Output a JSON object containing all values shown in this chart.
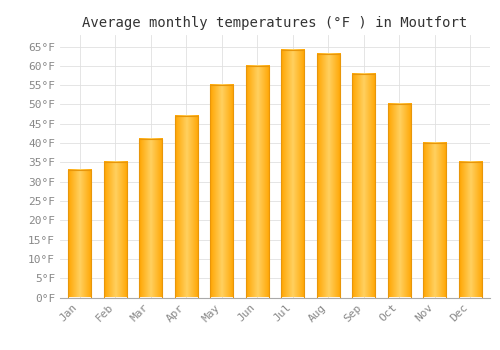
{
  "title": "Average monthly temperatures (°F ) in Moutfort",
  "months": [
    "Jan",
    "Feb",
    "Mar",
    "Apr",
    "May",
    "Jun",
    "Jul",
    "Aug",
    "Sep",
    "Oct",
    "Nov",
    "Dec"
  ],
  "values": [
    33,
    35,
    41,
    47,
    55,
    60,
    64,
    63,
    58,
    50,
    40,
    35
  ],
  "bar_color_center": "#FFD966",
  "bar_color_edge": "#F5A623",
  "bar_outline_color": "#E8960A",
  "background_color": "#FFFFFF",
  "grid_color": "#E0E0E0",
  "ylim": [
    0,
    68
  ],
  "yticks": [
    0,
    5,
    10,
    15,
    20,
    25,
    30,
    35,
    40,
    45,
    50,
    55,
    60,
    65
  ],
  "title_fontsize": 10,
  "tick_fontsize": 8,
  "font_family": "monospace"
}
